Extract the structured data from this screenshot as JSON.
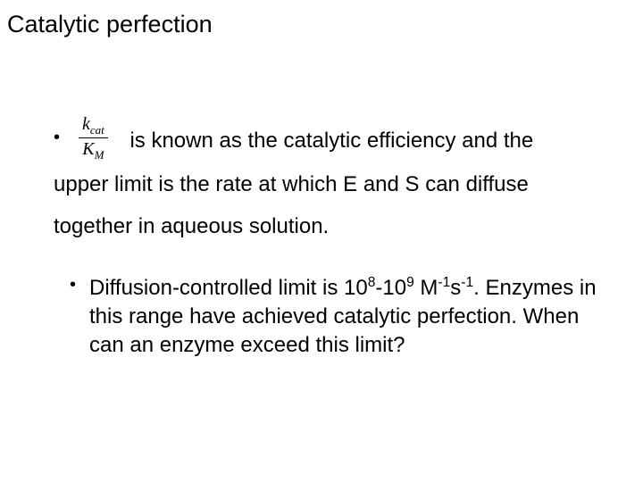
{
  "title": "Catalytic perfection",
  "fraction": {
    "numerator_k": "k",
    "numerator_sub": "cat",
    "denominator_k": "K",
    "denominator_sub": "M"
  },
  "point1": {
    "lead": " is known as the catalytic efficiency and the",
    "rest": "upper limit is the rate at which E and S can diffuse together in aqueous solution."
  },
  "subpoint": {
    "pre": "Diffusion-controlled limit is 10",
    "exp1": "8",
    "mid1": "-10",
    "exp2": "9",
    "unit_M": " M",
    "exp3": "-1",
    "unit_s": "s",
    "exp4": "-1",
    "post": ". Enzymes in this range have achieved catalytic perfection. When can an enzyme exceed this limit?"
  },
  "colors": {
    "background": "#ffffff",
    "text": "#000000"
  },
  "fonts": {
    "body_family": "Arial",
    "body_size_pt": 18,
    "title_size_pt": 20,
    "math_family": "Times New Roman"
  }
}
